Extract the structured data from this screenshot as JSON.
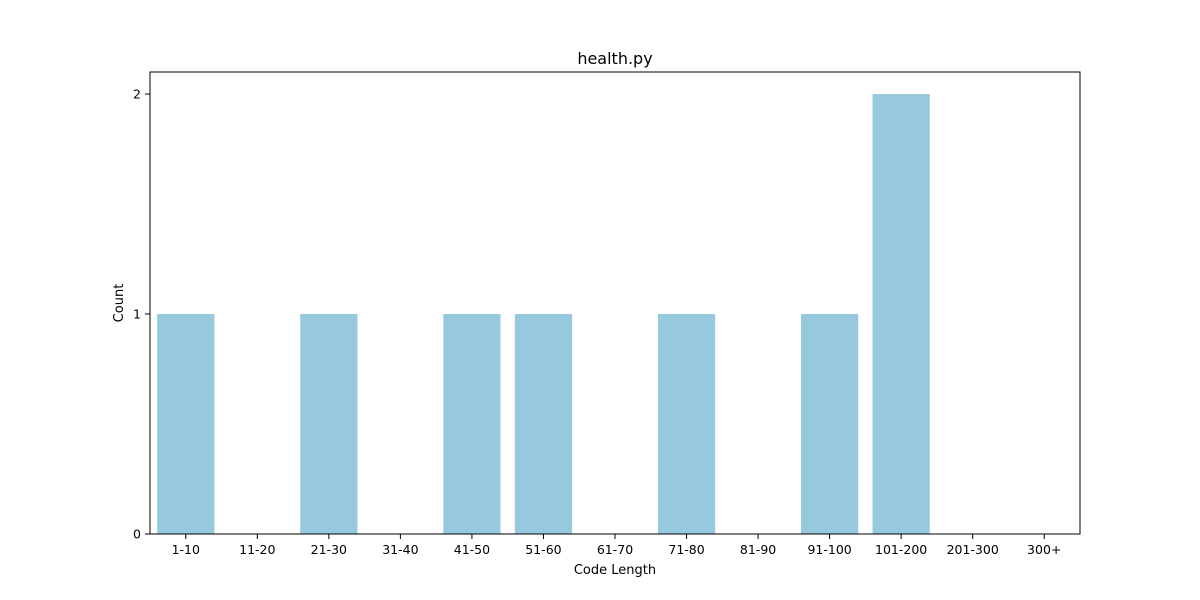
{
  "chart_data": {
    "type": "bar",
    "title": "health.py",
    "xlabel": "Code Length",
    "ylabel": "Count",
    "categories": [
      "1-10",
      "11-20",
      "21-30",
      "31-40",
      "41-50",
      "51-60",
      "61-70",
      "71-80",
      "81-90",
      "91-100",
      "101-200",
      "201-300",
      "300+"
    ],
    "values": [
      1,
      0,
      1,
      0,
      1,
      1,
      0,
      1,
      0,
      1,
      2,
      0,
      0
    ],
    "ylim": [
      0,
      2.1
    ],
    "yticks": [
      0,
      1,
      2
    ],
    "bar_color": "#96c9de",
    "grid": false,
    "legend": "none"
  }
}
